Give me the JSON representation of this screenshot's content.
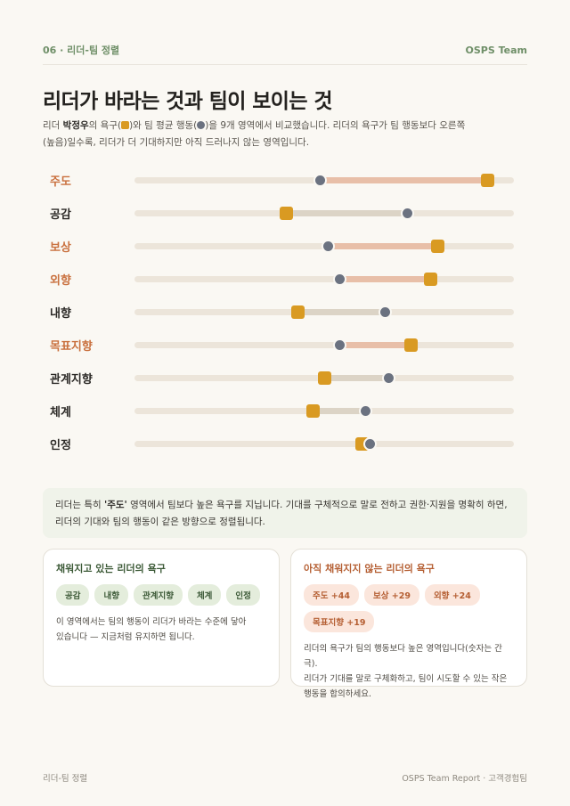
{
  "header": {
    "section": "06 · 리더-팀 정렬",
    "brand": "OSPS Team"
  },
  "title": "리더가 바라는 것과 팀이 보이는 것",
  "description": {
    "pre": "리더 ",
    "leader_name": "박정우",
    "mid1": "의 욕구(",
    "mid2": ")와 팀 평균 행동(",
    "rest_line1": ")을 9개 영역에서 비교했습니다. 리더의 욕구가 팀 행동보다 오른쪽",
    "rest_line2": "(높음)일수록, 리더가 더 기대하지만 아직 드러나지 않는 영역입니다."
  },
  "colors": {
    "leader": "#d99a22",
    "team": "#6b7280",
    "gap_high": "#e8bfa8",
    "gap_low": "#dcd4c6",
    "highlight_label": "#c9703e"
  },
  "chart_data": {
    "type": "dumbbell",
    "x_range": [
      0,
      100
    ],
    "series": [
      {
        "name": "리더의 욕구",
        "marker": "square"
      },
      {
        "name": "팀 평균 행동",
        "marker": "circle"
      }
    ],
    "rows": [
      {
        "label": "주도",
        "leader": 93,
        "team": 49,
        "highlight": true
      },
      {
        "label": "공감",
        "leader": 40,
        "team": 72,
        "highlight": false
      },
      {
        "label": "보상",
        "leader": 80,
        "team": 51,
        "highlight": true
      },
      {
        "label": "외향",
        "leader": 78,
        "team": 54,
        "highlight": true
      },
      {
        "label": "내향",
        "leader": 43,
        "team": 66,
        "highlight": false
      },
      {
        "label": "목표지향",
        "leader": 73,
        "team": 54,
        "highlight": true
      },
      {
        "label": "관계지향",
        "leader": 50,
        "team": 67,
        "highlight": false
      },
      {
        "label": "체계",
        "leader": 47,
        "team": 61,
        "highlight": false
      },
      {
        "label": "인정",
        "leader": 60,
        "team": 62,
        "highlight": false
      }
    ]
  },
  "callout": {
    "pre": "리더는 특히 ",
    "bold": "'주도'",
    "line1_rest": " 영역에서 팀보다 높은 욕구를 지닙니다. 기대를 구체적으로 말로 전하고 권한·지원을 명확히 하면,",
    "line2": "리더의 기대와 팀의 행동이 같은 방향으로 정렬됩니다."
  },
  "cards": {
    "fulfilled": {
      "title": "채워지고 있는 리더의 욕구",
      "chips": [
        "공감",
        "내향",
        "관계지향",
        "체계",
        "인정"
      ],
      "line1": "이 영역에서는 팀의 행동이 리더가 바라는 수준에 닿아",
      "line2": "있습니다 — 지금처럼 유지하면 됩니다."
    },
    "unfulfilled": {
      "title": "아직 채워지지 않는 리더의 욕구",
      "chips": [
        "주도 +44",
        "보상 +29",
        "외향 +24",
        "목표지향 +19"
      ],
      "line1": "리더의 욕구가 팀의 행동보다 높은 영역입니다(숫자는 간극).",
      "line2": "리더가 기대를 말로 구체화하고, 팀이 시도할 수 있는 작은",
      "line3": "행동을 합의하세요."
    }
  },
  "footer": {
    "left": "리더-팀 정렬",
    "right": "OSPS Team Report · 고객경험팀"
  }
}
